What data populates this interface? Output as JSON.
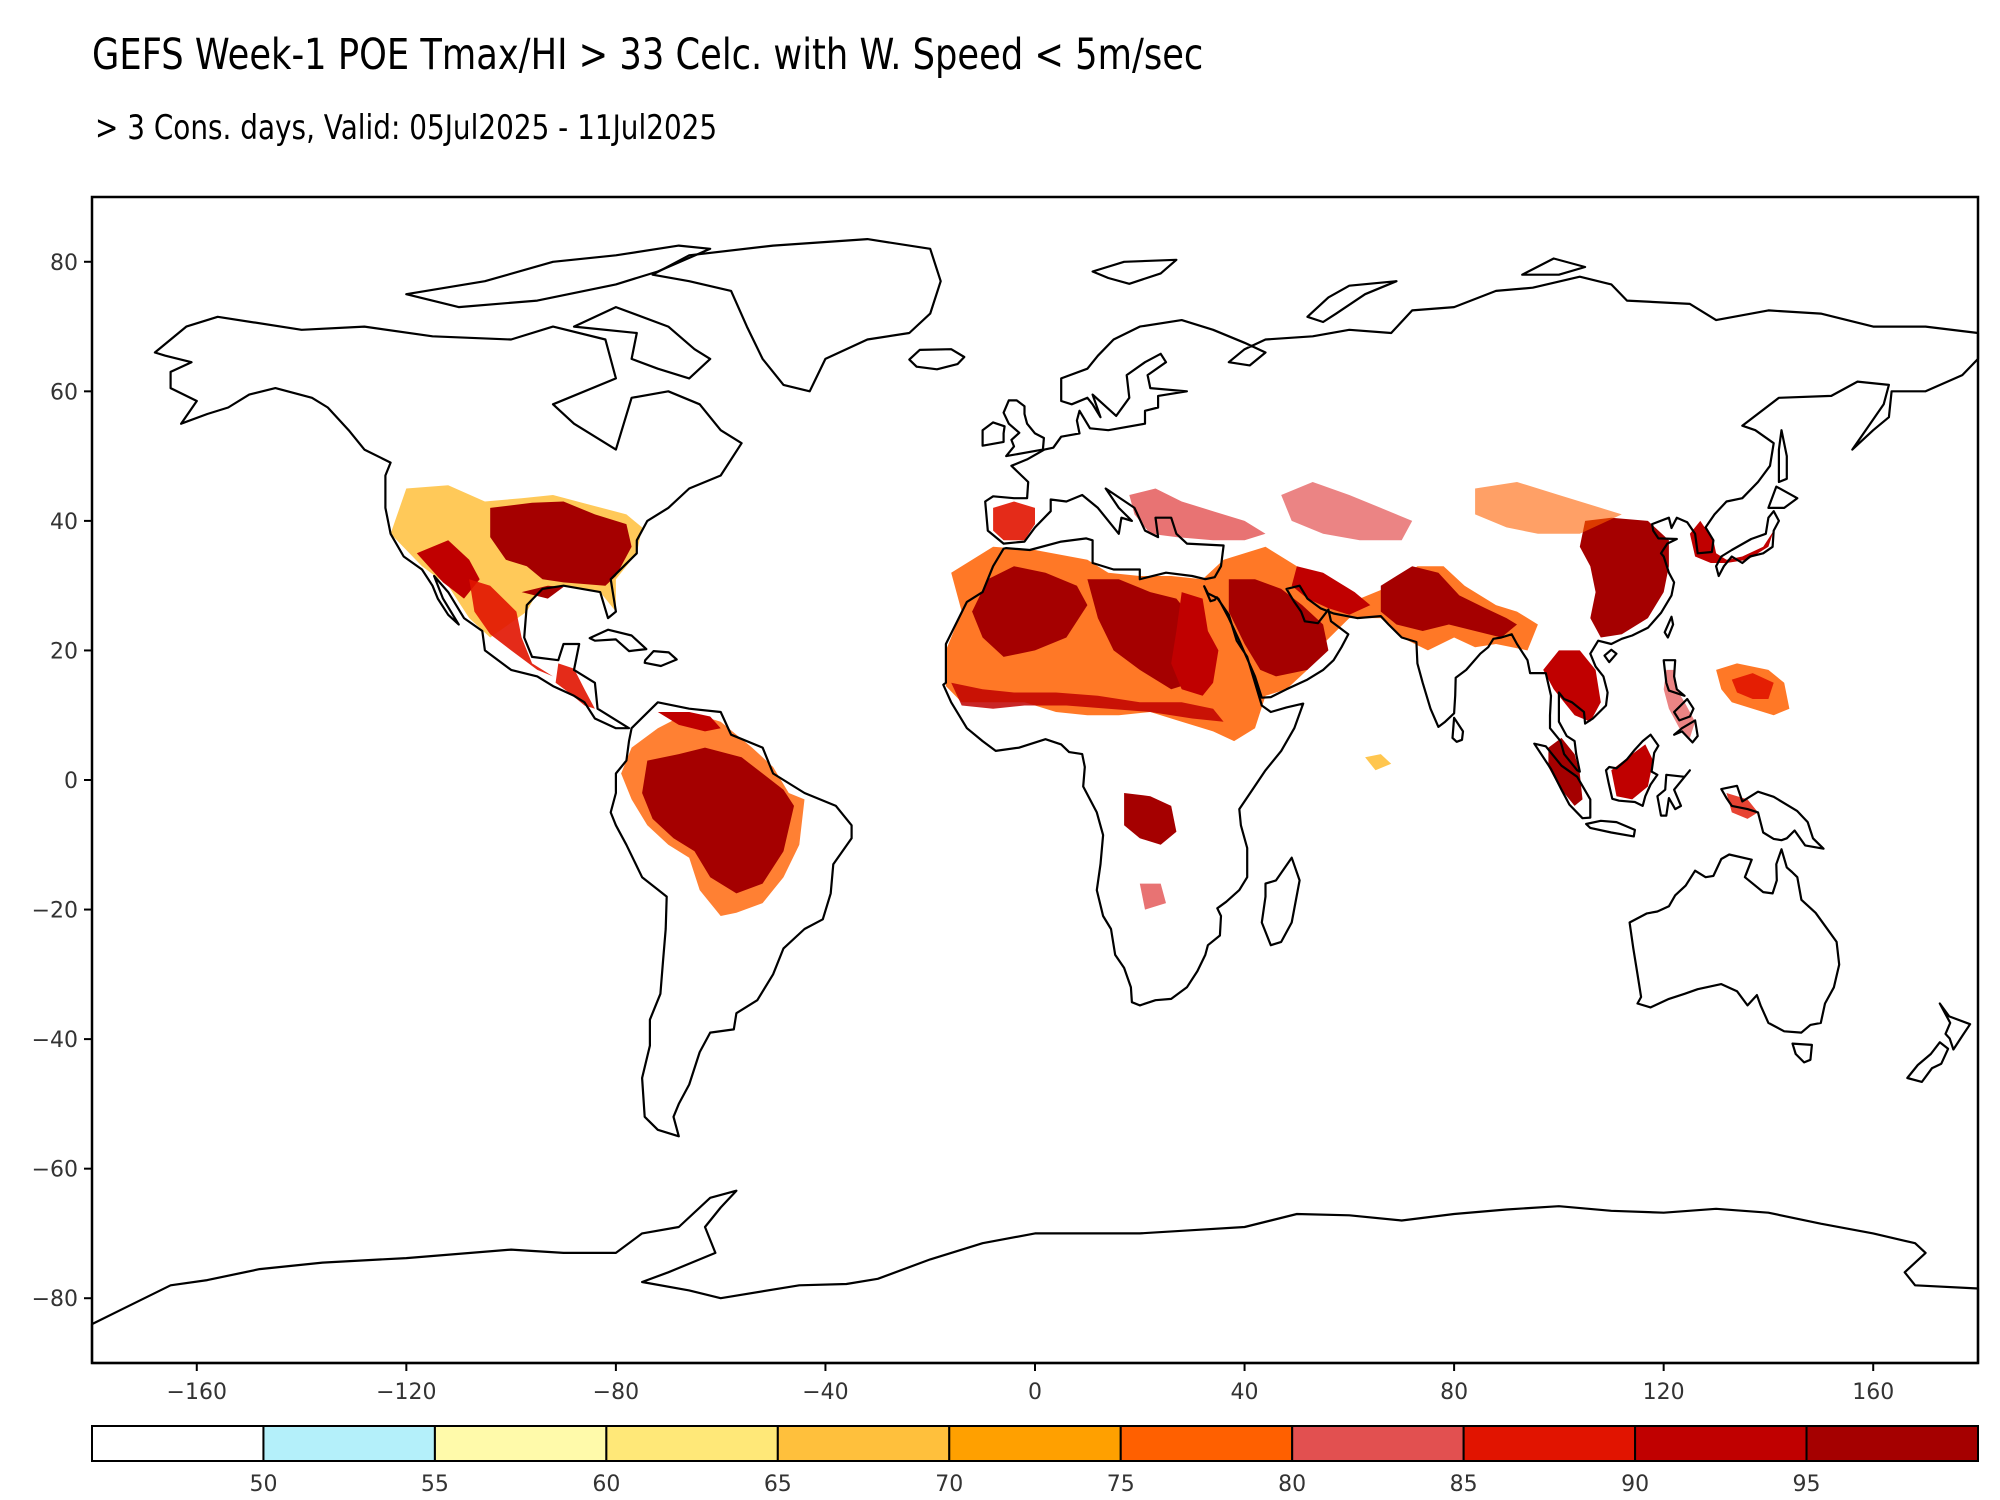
{
  "title": "GEFS Week-1 POE Tmax/HI > 33 Celc. with W. Speed < 5m/sec",
  "subtitle": "> 3 Cons. days, Valid: 05Jul2025 - 11Jul2025",
  "map": {
    "projection": "equirectangular",
    "lon_range": [
      -180,
      180
    ],
    "lat_range": [
      -90,
      90
    ],
    "x_ticks": [
      -160,
      -120,
      -80,
      -40,
      0,
      40,
      80,
      120,
      160
    ],
    "y_ticks": [
      80,
      60,
      40,
      20,
      0,
      -20,
      -40,
      -60,
      -80
    ],
    "coastline_color": "#000000",
    "background": "#ffffff"
  },
  "colorbar": {
    "boundaries": [
      "50",
      "55",
      "60",
      "65",
      "70",
      "75",
      "80",
      "85",
      "90",
      "95"
    ],
    "colors": [
      "#ffffff",
      "#b4f0fa",
      "#fffaaa",
      "#ffe878",
      "#ffc03c",
      "#ffa000",
      "#ff6000",
      "#e25050",
      "#e11400",
      "#c00000",
      "#a50000"
    ]
  }
}
